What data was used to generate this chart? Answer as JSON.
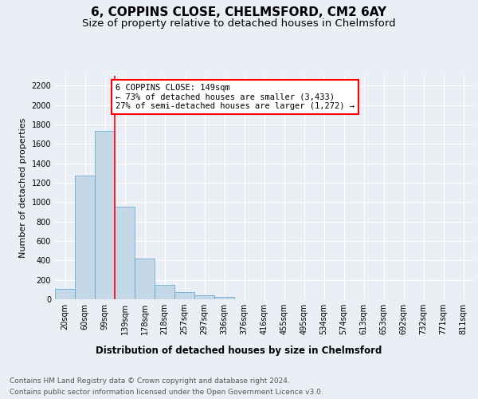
{
  "title": "6, COPPINS CLOSE, CHELMSFORD, CM2 6AY",
  "subtitle": "Size of property relative to detached houses in Chelmsford",
  "xlabel": "Distribution of detached houses by size in Chelmsford",
  "ylabel": "Number of detached properties",
  "footer_line1": "Contains HM Land Registry data © Crown copyright and database right 2024.",
  "footer_line2": "Contains public sector information licensed under the Open Government Licence v3.0.",
  "bar_labels": [
    "20sqm",
    "60sqm",
    "99sqm",
    "139sqm",
    "178sqm",
    "218sqm",
    "257sqm",
    "297sqm",
    "336sqm",
    "376sqm",
    "416sqm",
    "455sqm",
    "495sqm",
    "534sqm",
    "574sqm",
    "613sqm",
    "653sqm",
    "692sqm",
    "732sqm",
    "771sqm",
    "811sqm"
  ],
  "bar_values": [
    110,
    1270,
    1730,
    950,
    415,
    150,
    75,
    45,
    25,
    0,
    0,
    0,
    0,
    0,
    0,
    0,
    0,
    0,
    0,
    0,
    0
  ],
  "bar_color": "#c5d8e8",
  "bar_edge_color": "#5a9ec9",
  "annotation_text": "6 COPPINS CLOSE: 149sqm\n← 73% of detached houses are smaller (3,433)\n27% of semi-detached houses are larger (1,272) →",
  "redline_x": 2.5,
  "ylim": [
    0,
    2300
  ],
  "yticks": [
    0,
    200,
    400,
    600,
    800,
    1000,
    1200,
    1400,
    1600,
    1800,
    2000,
    2200
  ],
  "background_color": "#eaeff5",
  "plot_background_color": "#eaeff5",
  "grid_color": "#ffffff",
  "title_fontsize": 11,
  "subtitle_fontsize": 9.5,
  "ylabel_fontsize": 8,
  "xlabel_fontsize": 8.5,
  "tick_fontsize": 7,
  "annotation_fontsize": 7.5,
  "footer_fontsize": 6.5
}
